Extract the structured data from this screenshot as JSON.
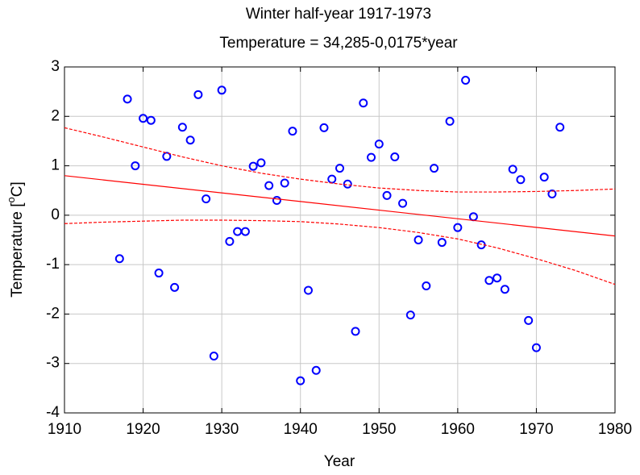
{
  "chart_data": {
    "type": "scatter",
    "title": "Winter half-year 1917-1973",
    "subtitle": "Temperature = 34,285-0,0175*year",
    "x_label": "Year",
    "y_label": [
      "Temperature [",
      "o",
      "C]"
    ],
    "xlim": [
      1910,
      1980
    ],
    "ylim": [
      -4,
      3
    ],
    "xticks": [
      1910,
      1920,
      1930,
      1940,
      1950,
      1960,
      1970,
      1980
    ],
    "yticks": [
      -4,
      -3,
      -2,
      -1,
      0,
      1,
      2,
      3
    ],
    "grid": true,
    "series": [
      {
        "type": "scatter",
        "color": "#0000ff",
        "x": [
          1917,
          1918,
          1919,
          1920,
          1921,
          1922,
          1923,
          1924,
          1925,
          1926,
          1927,
          1928,
          1929,
          1930,
          1931,
          1932,
          1933,
          1934,
          1935,
          1936,
          1937,
          1938,
          1939,
          1940,
          1941,
          1942,
          1943,
          1944,
          1945,
          1946,
          1947,
          1948,
          1949,
          1950,
          1951,
          1952,
          1953,
          1954,
          1955,
          1956,
          1957,
          1958,
          1959,
          1960,
          1961,
          1962,
          1963,
          1964,
          1965,
          1966,
          1967,
          1968,
          1969,
          1970,
          1971,
          1972,
          1973
        ],
        "values": [
          -0.88,
          2.35,
          1.0,
          1.96,
          1.92,
          -1.17,
          1.19,
          -1.46,
          1.78,
          1.52,
          2.44,
          0.33,
          -2.85,
          2.53,
          -0.53,
          -0.33,
          -0.33,
          0.99,
          1.06,
          0.6,
          0.3,
          0.65,
          1.7,
          -3.35,
          -1.52,
          -3.14,
          1.77,
          0.73,
          0.95,
          0.63,
          -2.35,
          2.27,
          1.17,
          1.44,
          0.4,
          1.18,
          0.24,
          -2.02,
          -0.5,
          -1.43,
          0.95,
          -0.55,
          1.9,
          -0.25,
          2.73,
          -0.03,
          -0.6,
          -1.32,
          -1.27,
          -1.5,
          0.93,
          0.72,
          -2.13,
          -2.68,
          0.77,
          0.43,
          1.78
        ]
      },
      {
        "type": "line",
        "color": "#ff0000",
        "dash": false,
        "x": [
          1910,
          1980
        ],
        "values": [
          0.8,
          -0.42
        ]
      },
      {
        "type": "line",
        "color": "#ff0000",
        "dash": true,
        "x": [
          1910,
          1915,
          1920,
          1925,
          1930,
          1935,
          1940,
          1945,
          1950,
          1955,
          1960,
          1965,
          1970,
          1975,
          1980
        ],
        "values": [
          1.77,
          1.58,
          1.38,
          1.18,
          1.0,
          0.85,
          0.73,
          0.63,
          0.55,
          0.5,
          0.47,
          0.47,
          0.48,
          0.5,
          0.53
        ]
      },
      {
        "type": "line",
        "color": "#ff0000",
        "dash": true,
        "x": [
          1910,
          1915,
          1920,
          1925,
          1930,
          1935,
          1940,
          1945,
          1950,
          1955,
          1960,
          1965,
          1970,
          1975,
          1980
        ],
        "values": [
          -0.17,
          -0.14,
          -0.12,
          -0.1,
          -0.1,
          -0.11,
          -0.13,
          -0.18,
          -0.25,
          -0.35,
          -0.48,
          -0.66,
          -0.88,
          -1.12,
          -1.4
        ]
      }
    ]
  }
}
